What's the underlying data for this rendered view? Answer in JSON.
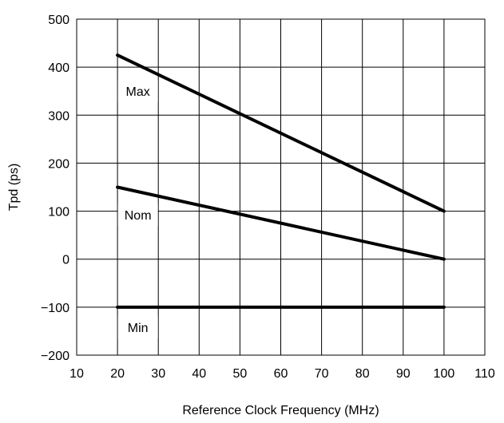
{
  "chart_data": {
    "type": "line",
    "title": "",
    "xlabel": "Reference Clock Frequency (MHz)",
    "ylabel": "Tpd (ps)",
    "xlim": [
      10,
      110
    ],
    "ylim": [
      -200,
      500
    ],
    "xticks": [
      10,
      20,
      30,
      40,
      50,
      60,
      70,
      80,
      90,
      100,
      110
    ],
    "yticks": [
      -200,
      -100,
      0,
      100,
      200,
      300,
      400,
      500
    ],
    "xtick_labels": [
      "10",
      "20",
      "30",
      "40",
      "50",
      "60",
      "70",
      "80",
      "90",
      "100",
      "110"
    ],
    "ytick_labels": [
      "−200",
      "−100",
      "0",
      "100",
      "200",
      "300",
      "400",
      "500"
    ],
    "grid": true,
    "legend": "none",
    "series": [
      {
        "name": "Max",
        "x": [
          20,
          100
        ],
        "y": [
          425,
          100
        ]
      },
      {
        "name": "Nom",
        "x": [
          20,
          100
        ],
        "y": [
          150,
          0
        ]
      },
      {
        "name": "Min",
        "x": [
          20,
          100
        ],
        "y": [
          -100,
          -100
        ]
      }
    ],
    "annotations": [
      {
        "text": "Max",
        "x": 25,
        "y": 350
      },
      {
        "text": "Nom",
        "x": 25,
        "y": 93
      },
      {
        "text": "Min",
        "x": 25,
        "y": -142
      }
    ],
    "colors": {
      "line": "#000000",
      "grid": "#000000",
      "background": "#ffffff"
    }
  }
}
